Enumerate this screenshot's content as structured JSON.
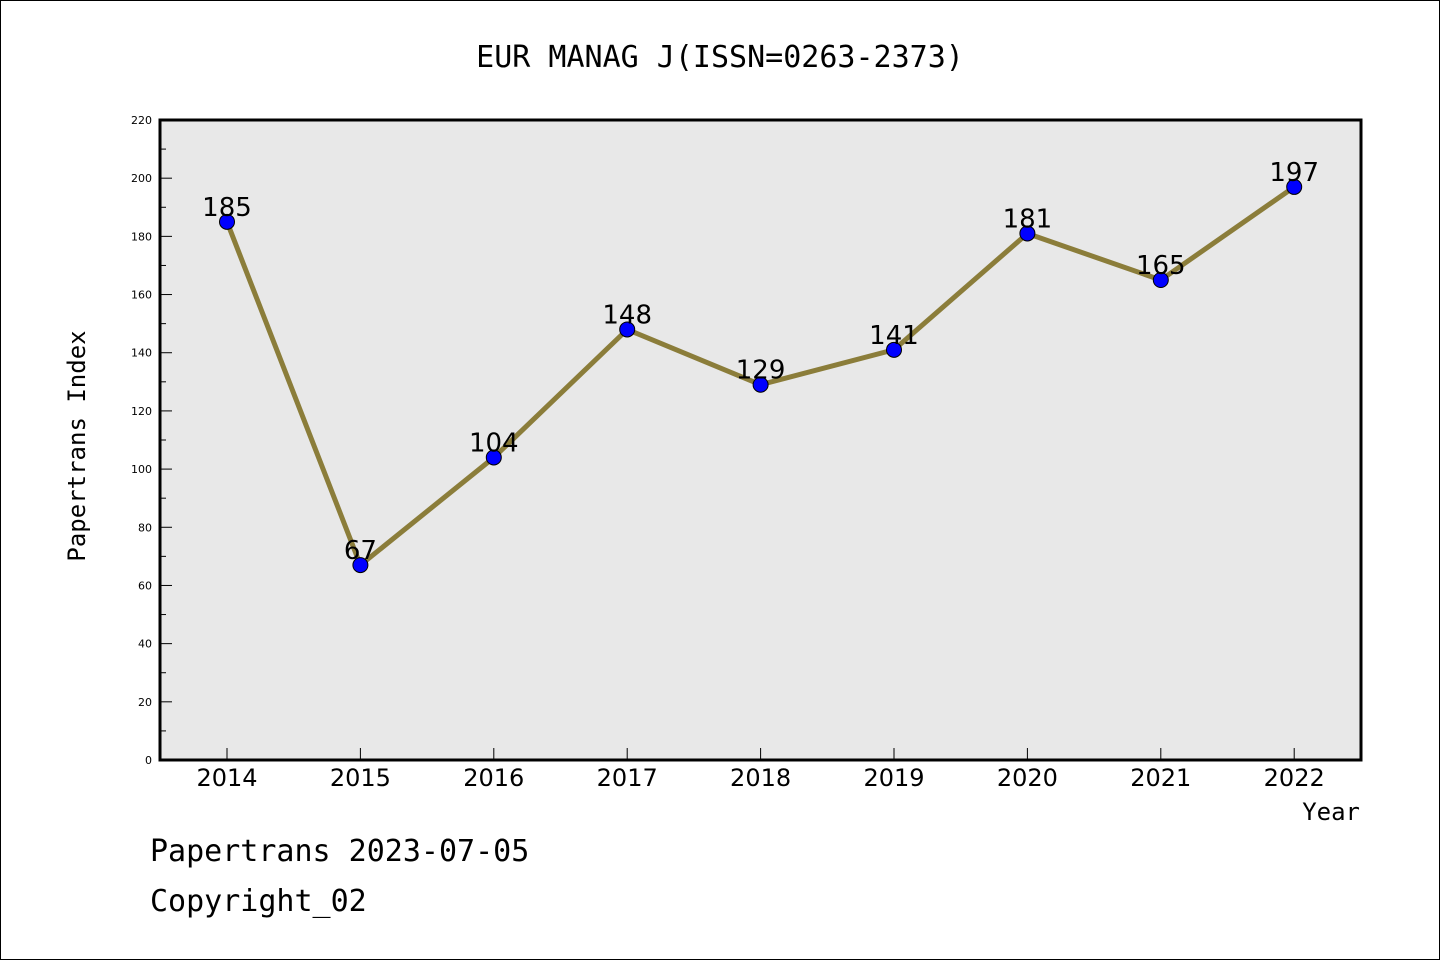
{
  "colors": {
    "background": "#ffffff",
    "plot_background": "#e8e8e8",
    "line": "#8b7d3a",
    "marker": "#0000ff",
    "marker_edge": "#000000",
    "text": "#000000"
  },
  "chart_data": {
    "type": "line",
    "title": "EUR MANAG J(ISSN=0263-2373)",
    "xlabel": "Year",
    "ylabel": "Papertrans Index",
    "categories": [
      "2014",
      "2015",
      "2016",
      "2017",
      "2018",
      "2019",
      "2020",
      "2021",
      "2022"
    ],
    "series": [
      {
        "values": [
          185,
          67,
          104,
          148,
          129,
          141,
          181,
          165,
          197
        ]
      }
    ],
    "data_labels": [
      "185",
      "67",
      "104",
      "148",
      "129",
      "141",
      "181",
      "165",
      "197"
    ],
    "ylim": [
      0,
      220
    ],
    "yticks": [
      0,
      20,
      40,
      60,
      80,
      100,
      120,
      140,
      160,
      180,
      200,
      220
    ],
    "ytick_labels": [
      "0",
      "20",
      "40",
      "60",
      "80",
      "100",
      "120",
      "140",
      "160",
      "180",
      "200",
      "220"
    ],
    "grid": false,
    "legend": "none"
  },
  "footer": {
    "date_text": "Papertrans 2023-07-05",
    "copyright_text": "Copyright_02"
  }
}
